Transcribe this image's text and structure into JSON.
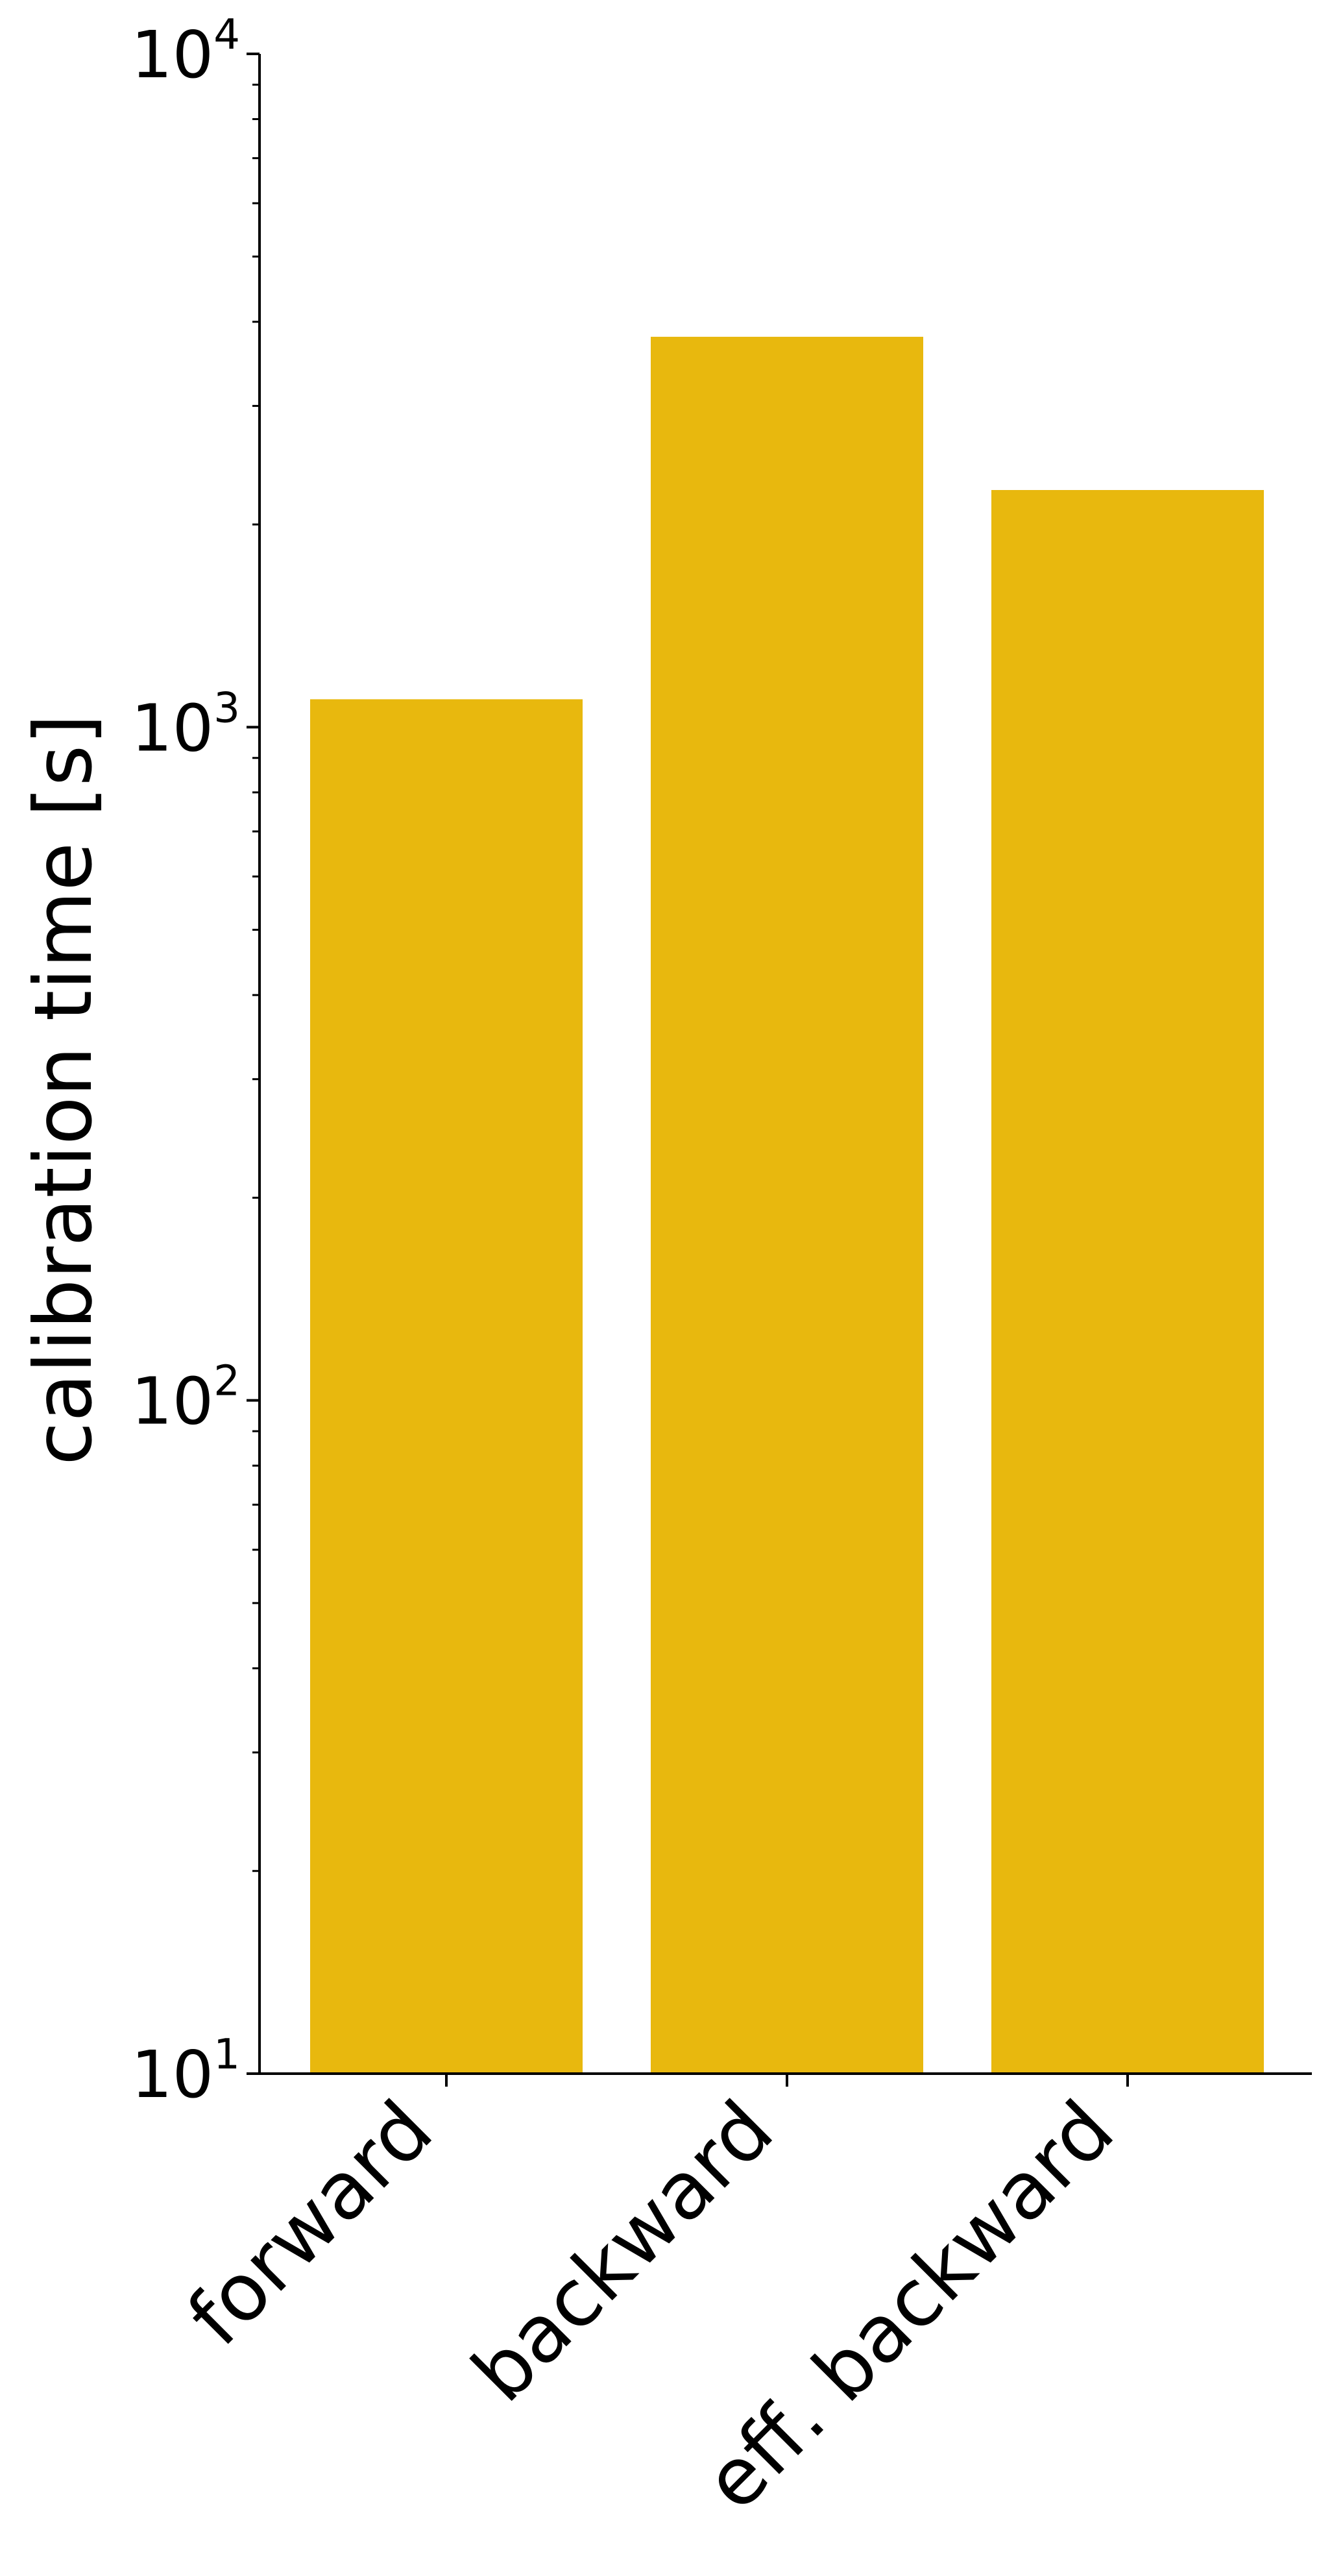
{
  "chart_data": {
    "type": "bar",
    "categories": [
      "forward",
      "backward",
      "eff. backward"
    ],
    "values": [
      1100,
      3800,
      2250
    ],
    "ylabel": "calibration time [s]",
    "xlabel": "",
    "yscale": "log",
    "ylim": [
      10,
      10000
    ],
    "yticks": [
      {
        "value": 10,
        "base": "10",
        "exp": "1"
      },
      {
        "value": 100,
        "base": "10",
        "exp": "2"
      },
      {
        "value": 1000,
        "base": "10",
        "exp": "3"
      },
      {
        "value": 10000,
        "base": "10",
        "exp": "4"
      }
    ],
    "bar_color": "#E8B80E",
    "grid": false,
    "legend": "none"
  }
}
